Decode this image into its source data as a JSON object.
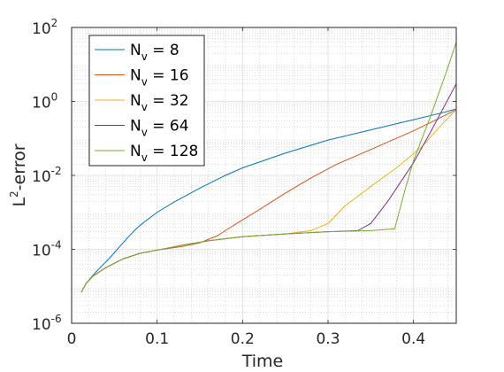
{
  "chart_data": {
    "type": "line",
    "title": "",
    "xlabel": "Time",
    "ylabel_base": "L",
    "ylabel_sup": "2",
    "ylabel_rest": "-error",
    "xlim": [
      0,
      0.45
    ],
    "ylim": [
      1e-06,
      100
    ],
    "yscale": "log",
    "grid": true,
    "minor_grid": true,
    "legend_position": "top-left",
    "x_ticks": [
      {
        "value": 0,
        "label": "0"
      },
      {
        "value": 0.1,
        "label": "0.1"
      },
      {
        "value": 0.2,
        "label": "0.2"
      },
      {
        "value": 0.3,
        "label": "0.3"
      },
      {
        "value": 0.4,
        "label": "0.4"
      }
    ],
    "y_ticks": [
      {
        "value": 1e-06,
        "base": "10",
        "exp": "-6"
      },
      {
        "value": 0.0001,
        "base": "10",
        "exp": "-4"
      },
      {
        "value": 0.01,
        "base": "10",
        "exp": "-2"
      },
      {
        "value": 1,
        "base": "10",
        "exp": "0"
      },
      {
        "value": 100,
        "base": "10",
        "exp": "2"
      }
    ],
    "series": [
      {
        "name_base": "N",
        "name_sub": "v",
        "name_value": " = 8",
        "color": "#0072BD",
        "points": [
          [
            0.0115,
            7e-06
          ],
          [
            0.017,
            1.2e-05
          ],
          [
            0.025,
            2e-05
          ],
          [
            0.035,
            3.5e-05
          ],
          [
            0.045,
            6e-05
          ],
          [
            0.055,
            0.00011
          ],
          [
            0.065,
            0.0002
          ],
          [
            0.075,
            0.00035
          ],
          [
            0.085,
            0.00055
          ],
          [
            0.1,
            0.001
          ],
          [
            0.12,
            0.0019
          ],
          [
            0.15,
            0.0045
          ],
          [
            0.18,
            0.01
          ],
          [
            0.2,
            0.016
          ],
          [
            0.25,
            0.04
          ],
          [
            0.3,
            0.09
          ],
          [
            0.35,
            0.17
          ],
          [
            0.4,
            0.32
          ],
          [
            0.43,
            0.47
          ],
          [
            0.45,
            0.62
          ]
        ]
      },
      {
        "name_base": "N",
        "name_sub": "v",
        "name_value": " = 16",
        "color": "#D95319",
        "points": [
          [
            0.0115,
            7e-06
          ],
          [
            0.017,
            1.2e-05
          ],
          [
            0.025,
            1.9e-05
          ],
          [
            0.04,
            3.2e-05
          ],
          [
            0.06,
            5.5e-05
          ],
          [
            0.08,
            7.8e-05
          ],
          [
            0.1,
            9.5e-05
          ],
          [
            0.13,
            0.00012
          ],
          [
            0.15,
            0.00015
          ],
          [
            0.17,
            0.00023
          ],
          [
            0.19,
            0.00045
          ],
          [
            0.22,
            0.0012
          ],
          [
            0.25,
            0.0033
          ],
          [
            0.28,
            0.0085
          ],
          [
            0.31,
            0.02
          ],
          [
            0.35,
            0.05
          ],
          [
            0.4,
            0.16
          ],
          [
            0.43,
            0.35
          ],
          [
            0.45,
            0.6
          ]
        ]
      },
      {
        "name_base": "N",
        "name_sub": "v",
        "name_value": " = 32",
        "color": "#EDB120",
        "points": [
          [
            0.0115,
            7e-06
          ],
          [
            0.017,
            1.2e-05
          ],
          [
            0.025,
            1.9e-05
          ],
          [
            0.04,
            3.2e-05
          ],
          [
            0.06,
            5.5e-05
          ],
          [
            0.08,
            7.8e-05
          ],
          [
            0.1,
            9.5e-05
          ],
          [
            0.13,
            0.00013
          ],
          [
            0.16,
            0.00017
          ],
          [
            0.2,
            0.00022
          ],
          [
            0.25,
            0.00026
          ],
          [
            0.28,
            0.00032
          ],
          [
            0.3,
            0.0005
          ],
          [
            0.32,
            0.0015
          ],
          [
            0.35,
            0.005
          ],
          [
            0.38,
            0.016
          ],
          [
            0.41,
            0.06
          ],
          [
            0.43,
            0.2
          ],
          [
            0.45,
            0.6
          ]
        ]
      },
      {
        "name_base": "N",
        "name_sub": "v",
        "name_value": " = 64",
        "color": "#7E2F8E",
        "points": [
          [
            0.0115,
            7e-06
          ],
          [
            0.017,
            1.2e-05
          ],
          [
            0.025,
            1.9e-05
          ],
          [
            0.04,
            3.2e-05
          ],
          [
            0.06,
            5.5e-05
          ],
          [
            0.08,
            7.8e-05
          ],
          [
            0.1,
            9.5e-05
          ],
          [
            0.13,
            0.00013
          ],
          [
            0.16,
            0.00017
          ],
          [
            0.2,
            0.00022
          ],
          [
            0.25,
            0.00026
          ],
          [
            0.3,
            0.0003
          ],
          [
            0.335,
            0.00032
          ],
          [
            0.35,
            0.0005
          ],
          [
            0.37,
            0.002
          ],
          [
            0.4,
            0.022
          ],
          [
            0.42,
            0.15
          ],
          [
            0.44,
            1.1
          ],
          [
            0.45,
            3
          ]
        ]
      },
      {
        "name_base": "N",
        "name_sub": "v",
        "name_value": " = 128",
        "color": "#77AC30",
        "points": [
          [
            0.0115,
            7e-06
          ],
          [
            0.017,
            1.2e-05
          ],
          [
            0.025,
            1.9e-05
          ],
          [
            0.04,
            3.2e-05
          ],
          [
            0.06,
            5.5e-05
          ],
          [
            0.08,
            7.8e-05
          ],
          [
            0.1,
            9.5e-05
          ],
          [
            0.13,
            0.00013
          ],
          [
            0.16,
            0.00017
          ],
          [
            0.2,
            0.00022
          ],
          [
            0.25,
            0.00026
          ],
          [
            0.3,
            0.0003
          ],
          [
            0.35,
            0.00032
          ],
          [
            0.378,
            0.00036
          ],
          [
            0.39,
            0.004
          ],
          [
            0.4,
            0.025
          ],
          [
            0.42,
            0.4
          ],
          [
            0.44,
            8
          ],
          [
            0.45,
            40
          ]
        ]
      }
    ]
  }
}
